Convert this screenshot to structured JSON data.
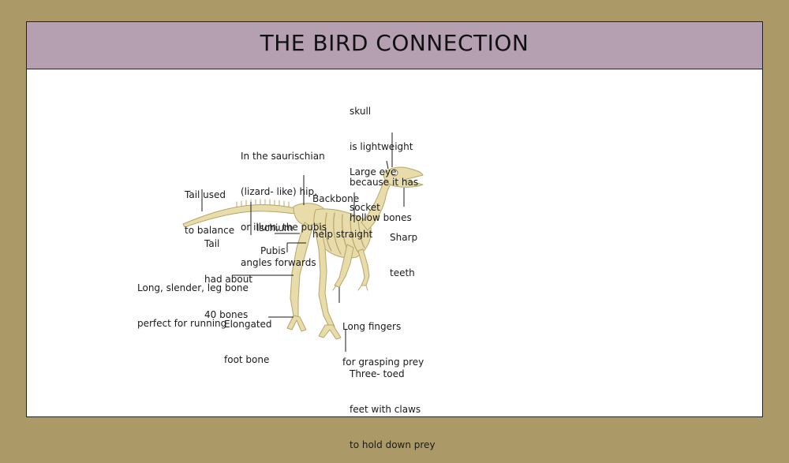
{
  "title": "THE BIRD CONNECTION",
  "colors": {
    "frame": "#ab9a68",
    "title_bar": "#b5a0b2",
    "bone": "#e7dcaa",
    "bone_edge": "#b8a56a"
  },
  "labels": {
    "skull": [
      "skull",
      "is lightweight",
      "because it has",
      "hollow bones"
    ],
    "eye_socket": [
      "Large eye",
      "socket"
    ],
    "hip": [
      "In the saurischian",
      "(lizard- like) hip,",
      "or illum, the pubis",
      "angles forwards"
    ],
    "backbone": [
      "Backbone",
      "help straight"
    ],
    "tail_balance": [
      "Tail used",
      "to balance"
    ],
    "tail_bones": [
      "Tail",
      "had about",
      "40 bones"
    ],
    "ischium": "Ischium",
    "pubis": "Pubis",
    "sharp_teeth": [
      "Sharp",
      "teeth"
    ],
    "leg_bone": [
      "Long, slender, leg bone",
      "perfect for running"
    ],
    "foot_bone": [
      "Elongated",
      "foot bone"
    ],
    "fingers": [
      "Long fingers",
      "for grasping prey"
    ],
    "toes": [
      "Three- toed",
      "feet with claws",
      "to hold down prey"
    ]
  }
}
